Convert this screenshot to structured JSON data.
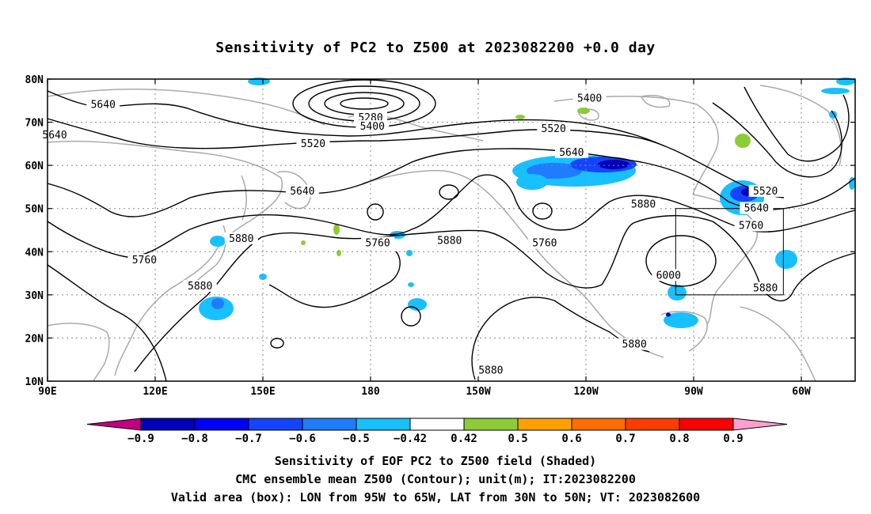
{
  "title": "Sensitivity of PC2 to Z500 at 2023082200 +0.0 day",
  "lat_labels": [
    "80N",
    "70N",
    "60N",
    "50N",
    "40N",
    "30N",
    "20N",
    "10N"
  ],
  "lon_labels": [
    "90E",
    "120E",
    "150E",
    "180",
    "150W",
    "120W",
    "90W",
    "60W"
  ],
  "colorbar": {
    "labels": [
      "-0.9",
      "-0.8",
      "-0.7",
      "-0.6",
      "-0.5",
      "-0.42",
      "0.42",
      "0.5",
      "0.6",
      "0.7",
      "0.8",
      "0.9"
    ],
    "colors": [
      "#0000b8",
      "#0000ff",
      "#1444ff",
      "#1f7cff",
      "#18c0ff",
      "#ffffff",
      "#8ccc36",
      "#ffa000",
      "#ff6c00",
      "#ff3c00",
      "#ff0000"
    ],
    "under_color": "#c0007e",
    "over_color": "#ffa0d0"
  },
  "contour_labels": [
    {
      "text": "5640",
      "lat": 74.0,
      "lon": 105.5
    },
    {
      "text": "5640",
      "lat": 67.0,
      "lon": 92.0
    },
    {
      "text": "5520",
      "lat": 65.0,
      "lon": 164.0
    },
    {
      "text": "5640",
      "lat": 54.0,
      "lon": 161.0
    },
    {
      "text": "5880",
      "lat": 43.0,
      "lon": 144.0
    },
    {
      "text": "5760",
      "lat": 38.0,
      "lon": 117.0
    },
    {
      "text": "5880",
      "lat": 32.0,
      "lon": 132.5
    },
    {
      "text": "5280",
      "lat": 71.0,
      "lon": 180.0
    },
    {
      "text": "5400",
      "lat": 69.0,
      "lon": 180.5
    },
    {
      "text": "5760",
      "lat": 42.0,
      "lon": 182.0
    },
    {
      "text": "5880",
      "lat": 42.5,
      "lon": 202.0
    },
    {
      "text": "5760",
      "lat": 42.0,
      "lon": 228.5
    },
    {
      "text": "5520",
      "lat": 68.5,
      "lon": 231.0
    },
    {
      "text": "5640",
      "lat": 63.0,
      "lon": 236.0
    },
    {
      "text": "5400",
      "lat": 75.5,
      "lon": 241.0
    },
    {
      "text": "5880",
      "lat": 51.0,
      "lon": 256.0
    },
    {
      "text": "6000",
      "lat": 34.5,
      "lon": 263.0
    },
    {
      "text": "5880",
      "lat": 18.5,
      "lon": 253.5
    },
    {
      "text": "5880",
      "lat": 12.5,
      "lon": 213.5
    },
    {
      "text": "5520",
      "lat": 54.0,
      "lon": 290.0
    },
    {
      "text": "5640",
      "lat": 50.0,
      "lon": 287.5
    },
    {
      "text": "5760",
      "lat": 46.0,
      "lon": 286.0
    },
    {
      "text": "5880",
      "lat": 31.5,
      "lon": 290.0
    }
  ],
  "valid_box": {
    "lon_west": 265,
    "lon_east": 295,
    "lat_south": 30,
    "lat_north": 50
  },
  "caption_lines": [
    "Sensitivity of EOF PC2 to Z500 field (Shaded)",
    "CMC ensemble mean Z500 (Contour); unit(m); IT:2023082200",
    "Valid area (box): LON from 95W to 65W, LAT from 30N to 50N; VT: 2023082600"
  ]
}
